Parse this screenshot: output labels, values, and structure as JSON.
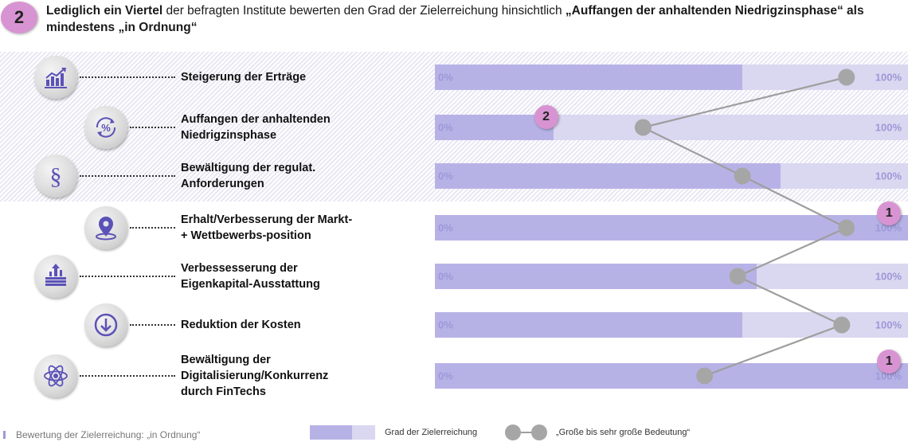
{
  "header": {
    "badge": "2",
    "text_parts": [
      {
        "text": "Lediglich ein Viertel",
        "bold": true
      },
      {
        "text": " der befragten Institute bewerten den Grad der Zielerreichung hinsichtlich ",
        "bold": false
      },
      {
        "text": "„Auffangen der anhaltenden Niedrigzinsphase“ als mindestens „in Ordnung“",
        "bold": true
      }
    ]
  },
  "footer": {
    "note": "Bewertung der Zielerreichung: „in Ordnung“",
    "legend_bar_label": "Grad der Zielerreichung",
    "legend_line_label": "„Große bis sehr große Bedeutung“"
  },
  "colors": {
    "bar_fill": "#b7b2e6",
    "bar_bg": "#dad7f0",
    "marker": "#a6a6a6",
    "line": "#9e9e9e",
    "badge": "#d894d2"
  },
  "chart_data": {
    "type": "bar",
    "title": "",
    "axis_min_label": "0%",
    "axis_max_label": "100%",
    "xlim": [
      0,
      100
    ],
    "categories": [
      "Steigerung der Erträge",
      "Auffangen der anhaltenden Niedrigzinsphase",
      "Bewältigung der regulat. Anforderungen",
      "Erhalt/Verbesserung der Markt- + Wettbewerbs-position",
      "Verbessesserung der Eigenkapital-Ausstattung",
      "Reduktion der Kosten",
      "Bewältigung der Digitalisierung/Konkurrenz durch FinTechs"
    ],
    "series": [
      {
        "name": "Grad der Zielerreichung",
        "values": [
          65,
          25,
          73,
          100,
          68,
          65,
          100
        ]
      },
      {
        "name": "„Große bis sehr große Bedeutung“",
        "values": [
          87,
          44,
          65,
          87,
          64,
          86,
          57
        ]
      }
    ],
    "row_icons": [
      "chart-growth-icon",
      "percent-cycle-icon",
      "paragraph-icon",
      "location-pin-icon",
      "money-growth-icon",
      "arrow-down-icon",
      "atom-icon"
    ],
    "row_badges": [
      null,
      "2",
      null,
      "1",
      null,
      null,
      "1"
    ],
    "highlighted_rows": [
      0,
      1,
      2
    ]
  }
}
